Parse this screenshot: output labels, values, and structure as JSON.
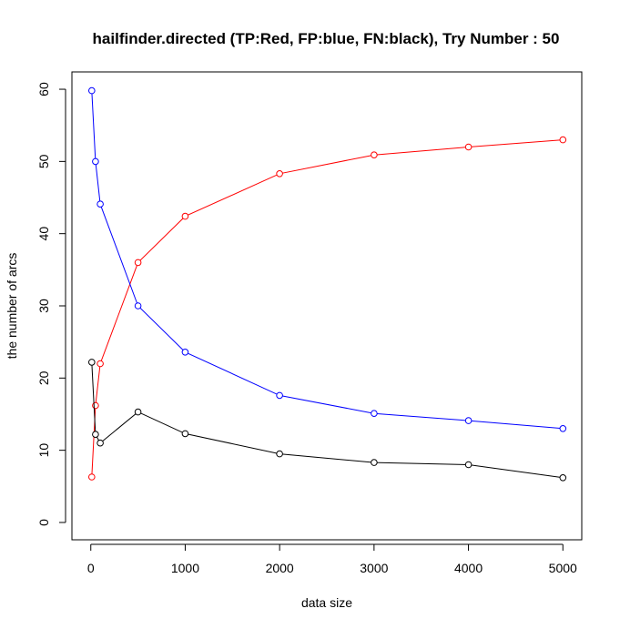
{
  "chart_data": {
    "type": "line",
    "title": "hailfinder.directed  (TP:Red, FP:blue, FN:black),  Try Number :  50",
    "xlabel": "data size",
    "ylabel": "the number of arcs",
    "x": [
      10,
      50,
      100,
      500,
      1000,
      2000,
      3000,
      4000,
      5000
    ],
    "x_ticks": [
      0,
      1000,
      2000,
      3000,
      4000,
      5000
    ],
    "y_ticks": [
      0,
      10,
      20,
      30,
      40,
      50,
      60
    ],
    "xlim": [
      -200,
      5200
    ],
    "ylim": [
      -2.4,
      62.4
    ],
    "grid": false,
    "legend": "none",
    "series": [
      {
        "key": "tp",
        "color": "#ff0000",
        "values": [
          6.3,
          16.2,
          22.0,
          36.0,
          42.4,
          48.3,
          50.9,
          52.0,
          53.0
        ]
      },
      {
        "key": "fp",
        "color": "#0000ff",
        "values": [
          59.8,
          50.0,
          44.1,
          30.0,
          23.6,
          17.6,
          15.1,
          14.1,
          13.0
        ]
      },
      {
        "key": "fn",
        "color": "#000000",
        "values": [
          22.2,
          12.2,
          11.0,
          15.3,
          12.3,
          9.5,
          8.3,
          8.0,
          6.2
        ]
      }
    ]
  }
}
